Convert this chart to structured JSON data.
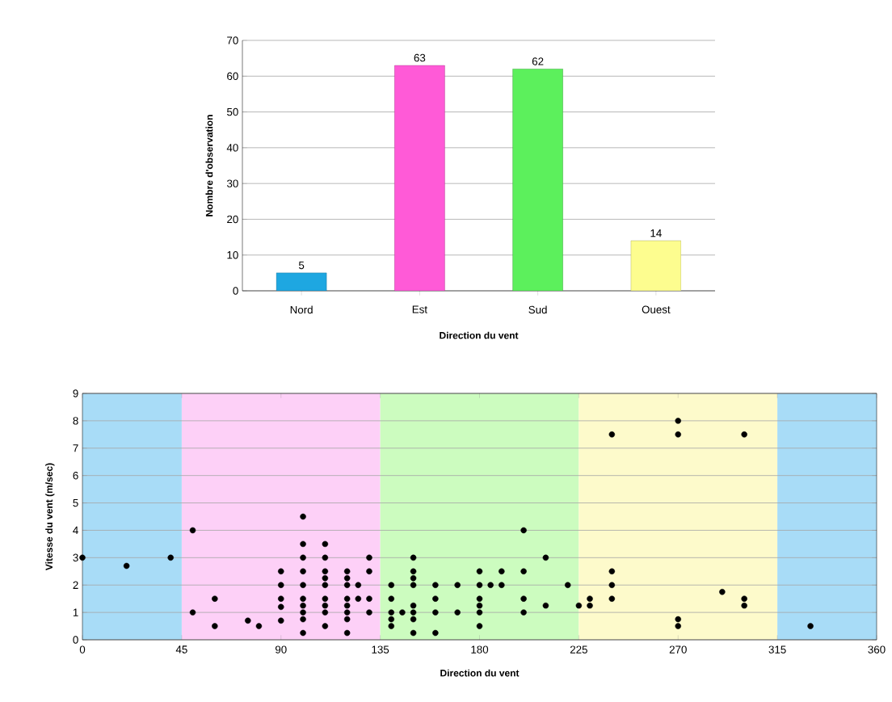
{
  "chart_data": [
    {
      "type": "bar",
      "xlabel": "Direction du vent",
      "ylabel": "Nombre d'observation",
      "categories": [
        "Nord",
        "Est",
        "Sud",
        "Ouest"
      ],
      "values": [
        5,
        63,
        62,
        14
      ],
      "colors": [
        "#1ea7e1",
        "#ff5ad7",
        "#5cf05c",
        "#fdfd8f"
      ],
      "ylim": [
        0,
        70
      ],
      "yticks": [
        0,
        10,
        20,
        30,
        40,
        50,
        60,
        70
      ],
      "grid": "y",
      "data_labels": true
    },
    {
      "type": "scatter",
      "xlabel": "Direction du vent",
      "ylabel": "Vitesse du vent (m/sec)",
      "x": [
        0,
        20,
        40,
        50,
        50,
        60,
        60,
        75,
        80,
        90,
        90,
        90,
        90,
        90,
        100,
        100,
        100,
        100,
        100,
        100,
        100,
        100,
        100,
        100,
        110,
        110,
        110,
        110,
        110,
        110,
        110,
        110,
        110,
        120,
        120,
        120,
        120,
        120,
        120,
        120,
        120,
        125,
        125,
        130,
        130,
        130,
        130,
        140,
        140,
        140,
        140,
        140,
        145,
        150,
        150,
        150,
        150,
        150,
        150,
        150,
        150,
        160,
        160,
        160,
        160,
        170,
        170,
        180,
        180,
        180,
        180,
        180,
        180,
        185,
        190,
        190,
        200,
        200,
        200,
        200,
        210,
        210,
        220,
        225,
        230,
        230,
        240,
        240,
        240,
        240,
        270,
        270,
        270,
        270,
        290,
        300,
        300,
        300,
        330
      ],
      "values": [
        3,
        2.7,
        3,
        4,
        1,
        1.5,
        0.5,
        0.7,
        0.5,
        2.5,
        2,
        1.5,
        1.2,
        0.7,
        4.5,
        3.5,
        3,
        2.5,
        2,
        1.5,
        1.25,
        1,
        0.75,
        0.25,
        3.5,
        3,
        2.5,
        2.25,
        2,
        1.5,
        1.25,
        1,
        0.5,
        2.5,
        2.25,
        2,
        1.5,
        1.25,
        1,
        0.75,
        0.25,
        2,
        1.5,
        3,
        2.5,
        1.5,
        1,
        2,
        1.5,
        1,
        0.75,
        0.5,
        1,
        3,
        2.5,
        2.25,
        2,
        1.25,
        1,
        0.75,
        0.25,
        2,
        1.5,
        1,
        0.25,
        2,
        1,
        2.5,
        2,
        1.5,
        1.25,
        1,
        0.5,
        2,
        2.5,
        2,
        4,
        2.5,
        1.5,
        1,
        3,
        1.25,
        2,
        1.25,
        1.5,
        1.25,
        7.5,
        2.5,
        2,
        1.5,
        8,
        7.5,
        0.75,
        0.5,
        1.75,
        7.5,
        1.5,
        1.25,
        0.5
      ],
      "color": "#000000",
      "marker": "circle",
      "xlim": [
        0,
        360
      ],
      "xticks": [
        0,
        45,
        90,
        135,
        180,
        225,
        270,
        315,
        360
      ],
      "ylim": [
        0,
        9
      ],
      "yticks": [
        0,
        1,
        2,
        3,
        4,
        5,
        6,
        7,
        8,
        9
      ],
      "grid": "y",
      "bands": [
        {
          "axis": "x",
          "from": 0,
          "to": 45,
          "color": "#a8dcf7"
        },
        {
          "axis": "x",
          "from": 45,
          "to": 135,
          "color": "#fdd0f7"
        },
        {
          "axis": "x",
          "from": 135,
          "to": 225,
          "color": "#ccfcbf"
        },
        {
          "axis": "x",
          "from": 225,
          "to": 315,
          "color": "#fdfacb"
        },
        {
          "axis": "x",
          "from": 315,
          "to": 360,
          "color": "#a8dcf7"
        }
      ]
    }
  ]
}
